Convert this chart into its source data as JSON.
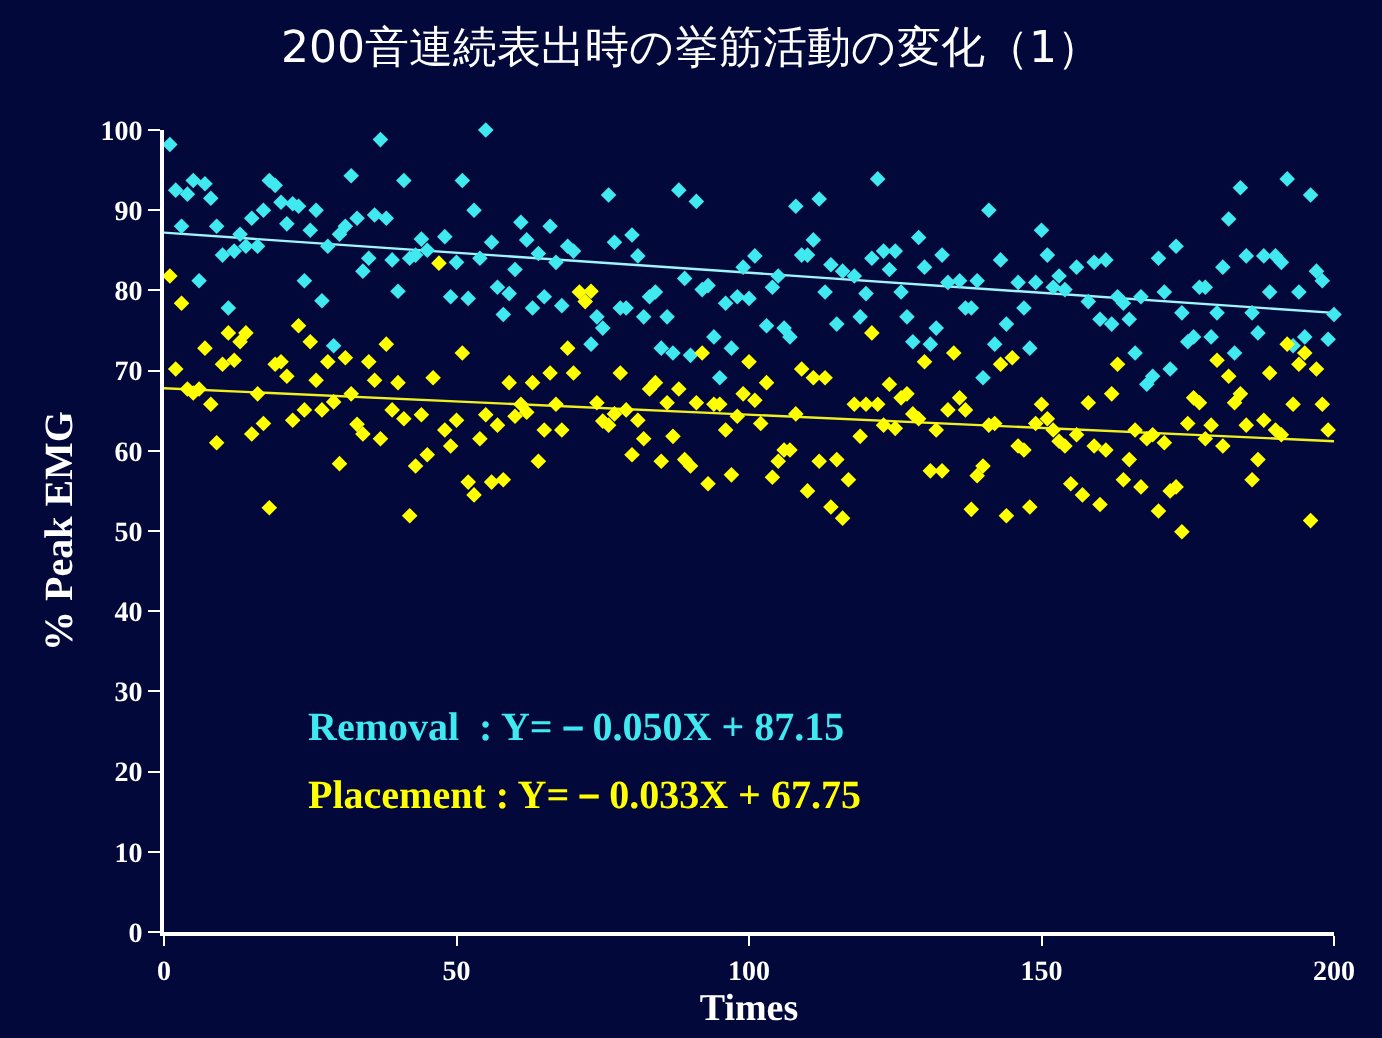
{
  "chart_data": {
    "type": "scatter",
    "title": "200音連続表出時の挙筋活動の変化（1）",
    "xlabel": "Times",
    "ylabel": "% Peak EMG",
    "xlim": [
      0,
      200
    ],
    "ylim": [
      0,
      100
    ],
    "xticks": [
      0,
      50,
      100,
      150,
      200
    ],
    "yticks": [
      0,
      10,
      20,
      30,
      40,
      50,
      60,
      70,
      80,
      90,
      100
    ],
    "grid": false,
    "marker": "diamond",
    "annotations": [
      "Removal  : Y=－0.050X + 87.15",
      "Placement : Y=－0.033X + 67.75"
    ],
    "series": [
      {
        "color": "#40e8f0",
        "x": [
          1,
          2,
          3,
          4,
          5,
          6,
          7,
          8,
          9,
          10,
          11,
          12,
          13,
          14,
          15,
          16,
          17,
          18,
          19,
          20,
          21,
          22,
          23,
          24,
          25,
          26,
          27,
          28,
          29,
          30,
          31,
          32,
          33,
          34,
          35,
          36,
          37,
          38,
          39,
          40,
          41,
          42,
          43,
          44,
          45,
          48,
          49,
          50,
          51,
          52,
          53,
          54,
          55,
          56,
          57,
          58,
          59,
          60,
          61,
          62,
          63,
          64,
          65,
          66,
          67,
          68,
          69,
          70,
          71,
          73,
          74,
          75,
          76,
          77,
          78,
          79,
          80,
          81,
          82,
          83,
          84,
          85,
          86,
          87,
          88,
          89,
          90,
          91,
          92,
          93,
          94,
          95,
          96,
          97,
          98,
          99,
          100,
          101,
          103,
          104,
          105,
          106,
          107,
          108,
          109,
          110,
          111,
          112,
          113,
          114,
          115,
          116,
          118,
          119,
          120,
          121,
          122,
          123,
          124,
          125,
          126,
          127,
          128,
          129,
          130,
          131,
          132,
          133,
          134,
          136,
          137,
          138,
          139,
          140,
          141,
          142,
          143,
          144,
          146,
          147,
          148,
          149,
          150,
          151,
          152,
          153,
          154,
          156,
          158,
          159,
          160,
          161,
          162,
          163,
          164,
          165,
          166,
          167,
          168,
          169,
          170,
          171,
          172,
          173,
          174,
          175,
          176,
          177,
          178,
          179,
          180,
          181,
          182,
          183,
          184,
          185,
          186,
          187,
          188,
          189,
          190,
          191,
          192,
          193,
          194,
          195,
          196,
          197,
          198,
          199,
          200
        ],
        "values": [
          98.2,
          92.5,
          88,
          92,
          93.7,
          81.2,
          93.3,
          91.5,
          88,
          84.4,
          77.8,
          84.9,
          87,
          85.5,
          89,
          85.5,
          90,
          93.7,
          93.1,
          91,
          88.3,
          90.8,
          90.5,
          81.2,
          87.5,
          90,
          78.7,
          85.5,
          73.1,
          87,
          88,
          94.3,
          89,
          82.4,
          84,
          89.4,
          98.8,
          89,
          83.8,
          79.9,
          93.7,
          84,
          84.4,
          86.4,
          85,
          86.7,
          79.2,
          83.5,
          93.7,
          79,
          90,
          84,
          100,
          86,
          80.4,
          77,
          79.6,
          82.6,
          88.5,
          86.3,
          77.8,
          84.6,
          79.2,
          88,
          83.5,
          78.1,
          85.5,
          84.9,
          null,
          73.3,
          76.7,
          75.3,
          91.9,
          86,
          77.8,
          77.8,
          86.9,
          84.3,
          76.7,
          79.2,
          79.8,
          72.8,
          76.7,
          72.2,
          92.5,
          81.5,
          71.9,
          91.1,
          80.1,
          80.6,
          74.2,
          69.1,
          78.4,
          72.8,
          79.2,
          82.9,
          79,
          84.3,
          75.6,
          80.4,
          81.8,
          75.3,
          74.2,
          90.5,
          84.4,
          84.4,
          86.3,
          91.4,
          79.8,
          83.2,
          75.8,
          82.4,
          81.8,
          76.7,
          79.6,
          84,
          93.9,
          84.9,
          82.6,
          84.9,
          79.8,
          76.7,
          73.6,
          86.6,
          82.9,
          73.3,
          75.3,
          84.4,
          81,
          81.2,
          77.8,
          77.8,
          81.2,
          69.1,
          90,
          73.3,
          83.8,
          75.8,
          81,
          77.8,
          72.8,
          81,
          87.5,
          84.4,
          80.4,
          81.8,
          80.1,
          82.9,
          78.6,
          83.5,
          76.4,
          83.8,
          75.8,
          79.2,
          78.4,
          76.4,
          72.2,
          79.2,
          68.3,
          69.3,
          84,
          79.8,
          70.2,
          85.5,
          77.2,
          73.6,
          74.2,
          80.4,
          80.4,
          74.2,
          77.2,
          82.9,
          88.9,
          72.2,
          92.8,
          84.3,
          77.2,
          74.7,
          84.3,
          79.8,
          84.3,
          83.5,
          93.9,
          73.1,
          79.8,
          74.2,
          91.9,
          82.4,
          81.2,
          73.9,
          77
        ]
      },
      {
        "color": "#ffff00",
        "x": [
          1,
          2,
          3,
          4,
          5,
          6,
          7,
          8,
          9,
          10,
          11,
          12,
          13,
          14,
          15,
          16,
          17,
          18,
          19,
          20,
          21,
          22,
          23,
          24,
          25,
          26,
          27,
          28,
          29,
          30,
          31,
          32,
          33,
          34,
          35,
          36,
          37,
          38,
          39,
          40,
          41,
          42,
          43,
          44,
          45,
          46,
          47,
          48,
          49,
          50,
          51,
          52,
          53,
          54,
          55,
          56,
          57,
          58,
          59,
          60,
          61,
          62,
          63,
          64,
          65,
          66,
          67,
          68,
          69,
          70,
          71,
          72,
          73,
          74,
          75,
          76,
          77,
          78,
          79,
          80,
          81,
          82,
          83,
          84,
          85,
          86,
          87,
          88,
          89,
          90,
          91,
          92,
          93,
          94,
          95,
          96,
          97,
          98,
          99,
          100,
          101,
          102,
          103,
          104,
          105,
          106,
          107,
          108,
          109,
          110,
          111,
          112,
          113,
          114,
          115,
          116,
          117,
          118,
          119,
          120,
          121,
          122,
          123,
          124,
          125,
          126,
          127,
          128,
          129,
          130,
          131,
          132,
          133,
          134,
          135,
          136,
          137,
          138,
          139,
          140,
          141,
          142,
          143,
          144,
          145,
          146,
          147,
          148,
          149,
          150,
          151,
          152,
          153,
          154,
          155,
          156,
          157,
          158,
          159,
          160,
          161,
          162,
          163,
          164,
          165,
          166,
          167,
          168,
          169,
          170,
          171,
          172,
          173,
          174,
          175,
          176,
          177,
          178,
          179,
          180,
          181,
          182,
          183,
          184,
          185,
          186,
          187,
          188,
          189,
          190,
          191,
          192,
          193,
          194,
          195,
          196,
          197,
          198,
          199
        ],
        "values": [
          81.8,
          70.2,
          78.4,
          67.7,
          67.2,
          67.7,
          72.8,
          65.8,
          61,
          70.8,
          74.7,
          71.3,
          73.6,
          74.7,
          62.1,
          67.1,
          63.4,
          52.9,
          70.8,
          71.1,
          69.3,
          63.8,
          75.6,
          65.1,
          73.6,
          68.8,
          65.1,
          71.1,
          66.1,
          58.4,
          71.6,
          67.1,
          63.3,
          62.1,
          71.1,
          68.8,
          61.5,
          73.3,
          65.1,
          68.5,
          64,
          51.9,
          58.1,
          64.5,
          59.5,
          69.1,
          83.4,
          62.6,
          60.6,
          63.8,
          72.2,
          56.1,
          54.5,
          61.5,
          64.5,
          56.1,
          63.2,
          56.4,
          68.5,
          64.3,
          65.8,
          64.8,
          68.5,
          58.7,
          62.6,
          69.7,
          65.8,
          62.6,
          72.8,
          69.7,
          79.8,
          78.6,
          79.9,
          66,
          63.7,
          63.2,
          64.6,
          69.7,
          65.1,
          59.5,
          63.8,
          61.5,
          67.7,
          68.5,
          58.7,
          66,
          61.8,
          67.7,
          58.9,
          58.1,
          66,
          72.2,
          55.9,
          65.8,
          65.8,
          62.6,
          57,
          64.3,
          67.1,
          71.1,
          66.3,
          63.4,
          68.5,
          56.7,
          58.7,
          60.1,
          60.1,
          64.6,
          70.2,
          55,
          69.1,
          58.7,
          69.1,
          53,
          58.9,
          51.6,
          56.4,
          65.8,
          61.8,
          65.8,
          74.7,
          65.8,
          63.2,
          68.3,
          62.8,
          66.6,
          67.1,
          64.6,
          64,
          71.1,
          57.5,
          62.6,
          57.5,
          65.1,
          72.2,
          66.6,
          65.1,
          52.7,
          56.9,
          58.1,
          63.2,
          63.4,
          70.8,
          51.9,
          71.6,
          60.6,
          60.1,
          53,
          63.4,
          65.8,
          64,
          62.6,
          61.2,
          60.6,
          55.9,
          62,
          54.5,
          66,
          60.6,
          53.3,
          60.1,
          67.1,
          70.8,
          56.4,
          58.9,
          62.6,
          55.5,
          61.5,
          62,
          52.5,
          61,
          55,
          55.5,
          49.9,
          63.4,
          66.6,
          66,
          61.5,
          63.2,
          71.3,
          60.6,
          69.3,
          66,
          67.1,
          63.2,
          56.4,
          58.9,
          63.8,
          69.7,
          62.6,
          62,
          73.3,
          65.8,
          70.8,
          72.2,
          51.3,
          70.2,
          65.8,
          62.6
        ]
      },
      {
        "type": "line",
        "color": "#a0f4ff",
        "marker": "none",
        "x": [
          0,
          200
        ],
        "values": [
          87.2,
          77.2
        ]
      },
      {
        "type": "line",
        "color": "#f0f020",
        "marker": "none",
        "x": [
          0,
          200
        ],
        "values": [
          67.8,
          61.2
        ]
      }
    ]
  }
}
